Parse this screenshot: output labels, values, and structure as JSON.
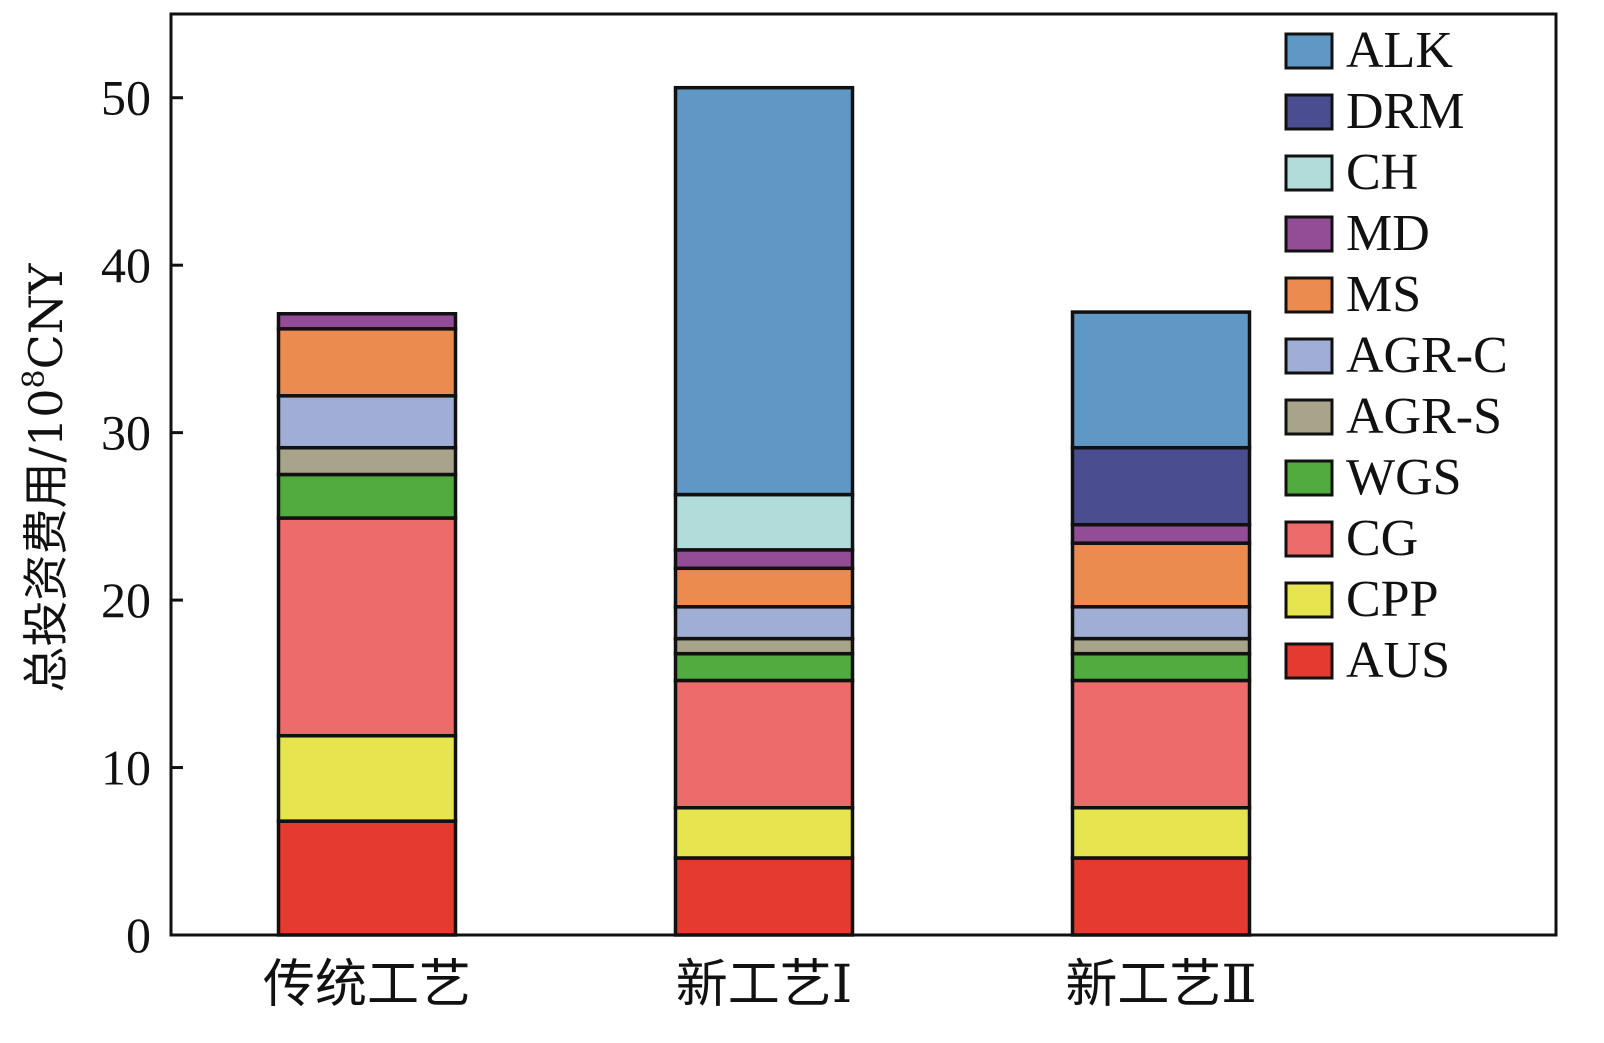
{
  "chart_data": {
    "type": "bar",
    "stacked": true,
    "categories": [
      "传统工艺",
      "新工艺Ⅰ",
      "新工艺Ⅱ"
    ],
    "ylabel": "总投资费用/10⁸CNY",
    "ylabel_main": "总投资费用/10",
    "ylabel_sup": "8",
    "ylabel_unit": "CNY",
    "ylim": [
      0,
      55
    ],
    "yticks": [
      0,
      10,
      20,
      30,
      40,
      50
    ],
    "legend_position": "top-right",
    "grid": false,
    "series": [
      {
        "name": "AUS",
        "color": "#e53a2f",
        "values": [
          6.8,
          4.6,
          4.6
        ]
      },
      {
        "name": "CPP",
        "color": "#e6e44f",
        "values": [
          5.1,
          3.0,
          3.0
        ]
      },
      {
        "name": "CG",
        "color": "#ee6b6b",
        "values": [
          13.0,
          7.6,
          7.6
        ]
      },
      {
        "name": "WGS",
        "color": "#52ab3f",
        "values": [
          2.6,
          1.6,
          1.6
        ]
      },
      {
        "name": "AGR-S",
        "color": "#a8a489",
        "values": [
          1.6,
          0.9,
          0.9
        ]
      },
      {
        "name": "AGR-C",
        "color": "#a0add4",
        "values": [
          3.1,
          1.9,
          1.9
        ]
      },
      {
        "name": "MS",
        "color": "#eb8b50",
        "values": [
          4.0,
          2.3,
          3.8
        ]
      },
      {
        "name": "MD",
        "color": "#934c96",
        "values": [
          0.9,
          1.1,
          1.1
        ]
      },
      {
        "name": "CH",
        "color": "#b1dcd9",
        "values": [
          0,
          3.3,
          0
        ]
      },
      {
        "name": "DRM",
        "color": "#4a4e91",
        "values": [
          0,
          0,
          4.6
        ]
      },
      {
        "name": "ALK",
        "color": "#5f97c5",
        "values": [
          0,
          24.3,
          8.1
        ]
      }
    ]
  }
}
